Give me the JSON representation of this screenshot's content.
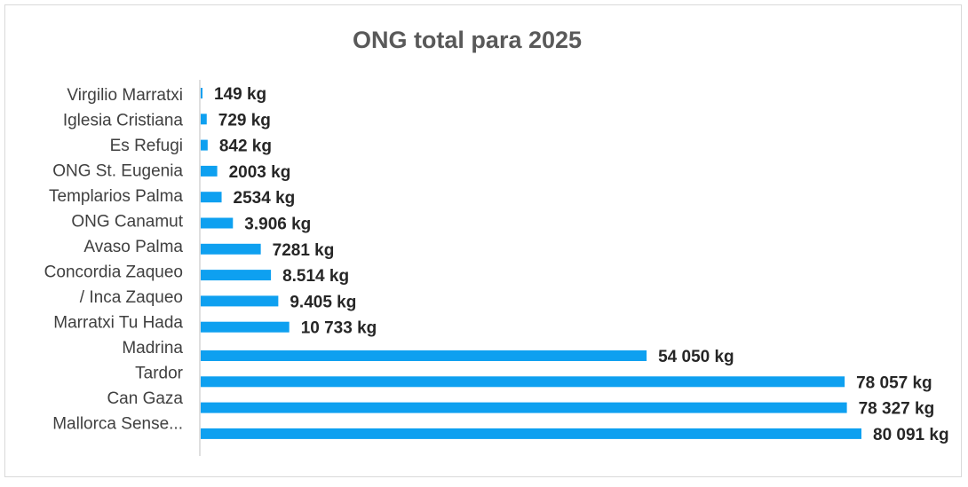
{
  "chart_data": {
    "type": "bar",
    "orientation": "horizontal",
    "title": "ONG total para 2025",
    "unit": "kg",
    "bar_color": "#0ea0f0",
    "category_labels": [
      "Virgilio Marratxi",
      "Iglesia Cristiana",
      "Es Refugi",
      "ONG St. Eugenia",
      "Templarios Palma",
      "ONG Canamut",
      "Avaso Palma",
      "Concordia Zaqueo",
      "/ Inca Zaqueo",
      "Marratxi Tu Hada",
      "Madrina",
      "Tardor",
      "Can Gaza",
      "Mallorca Sense..."
    ],
    "values": [
      149,
      729,
      842,
      2003,
      2534,
      3906,
      7281,
      8514,
      9405,
      10733,
      54050,
      78057,
      78327,
      80091
    ],
    "value_labels": [
      "149 kg",
      "729 kg",
      "842 kg",
      "2003 kg",
      "2534 kg",
      "3.906 kg",
      "7281 kg",
      "8.514 kg",
      "9.405 kg",
      "10 733 kg",
      "54 050 kg",
      "78 057 kg",
      "78 327 kg",
      "80 091 kg"
    ],
    "xlim": [
      0,
      80091
    ],
    "xlabel": "",
    "ylabel": "",
    "grid": false,
    "legend": "none"
  }
}
